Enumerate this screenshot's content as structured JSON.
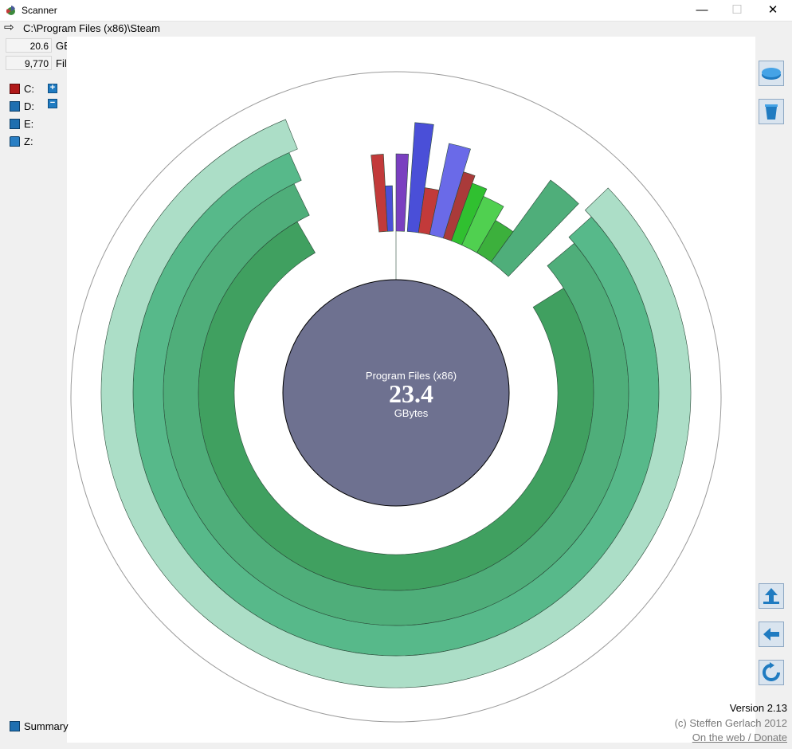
{
  "window": {
    "title": "Scanner",
    "minimize": "—",
    "maximize": "☐",
    "close": "✕"
  },
  "path": {
    "arrow": "⇨",
    "text": "C:\\Program Files (x86)\\Steam"
  },
  "stats": {
    "size_value": "20.6",
    "size_unit": "GBytes",
    "files_value": "9,770",
    "files_unit": "Files"
  },
  "drives": [
    {
      "label": "C:",
      "icon": "drive-c-icon",
      "color": "#b01818"
    },
    {
      "label": "D:",
      "icon": "drive-d-icon",
      "color": "#1f6fb0"
    },
    {
      "label": "E:",
      "icon": "drive-e-icon",
      "color": "#1f6fb0"
    },
    {
      "label": "Z:",
      "icon": "network-drive-icon",
      "color": "#1f6fb0"
    }
  ],
  "zoom": {
    "plus": "+",
    "minus": "−"
  },
  "chart": {
    "center_name": "Program Files (x86)",
    "center_value": "23.4",
    "center_unit": "GBytes",
    "colors": {
      "center": "#6e7190",
      "ring1": "#217f21",
      "ring2": "#40a060",
      "ring3": "#4fae7a",
      "ring4": "#57b98a",
      "ring5": "#acdec7"
    }
  },
  "toolbar_right": {
    "top": [
      "drive-open-icon",
      "recycle-bin-icon"
    ],
    "bottom": [
      "up-folder-icon",
      "back-arrow-icon",
      "refresh-icon"
    ]
  },
  "summary": {
    "label": "Summary"
  },
  "footer": {
    "version": "Version 2.13",
    "copyright": "(c) Steffen Gerlach 2012",
    "link": "On the web / Donate"
  }
}
